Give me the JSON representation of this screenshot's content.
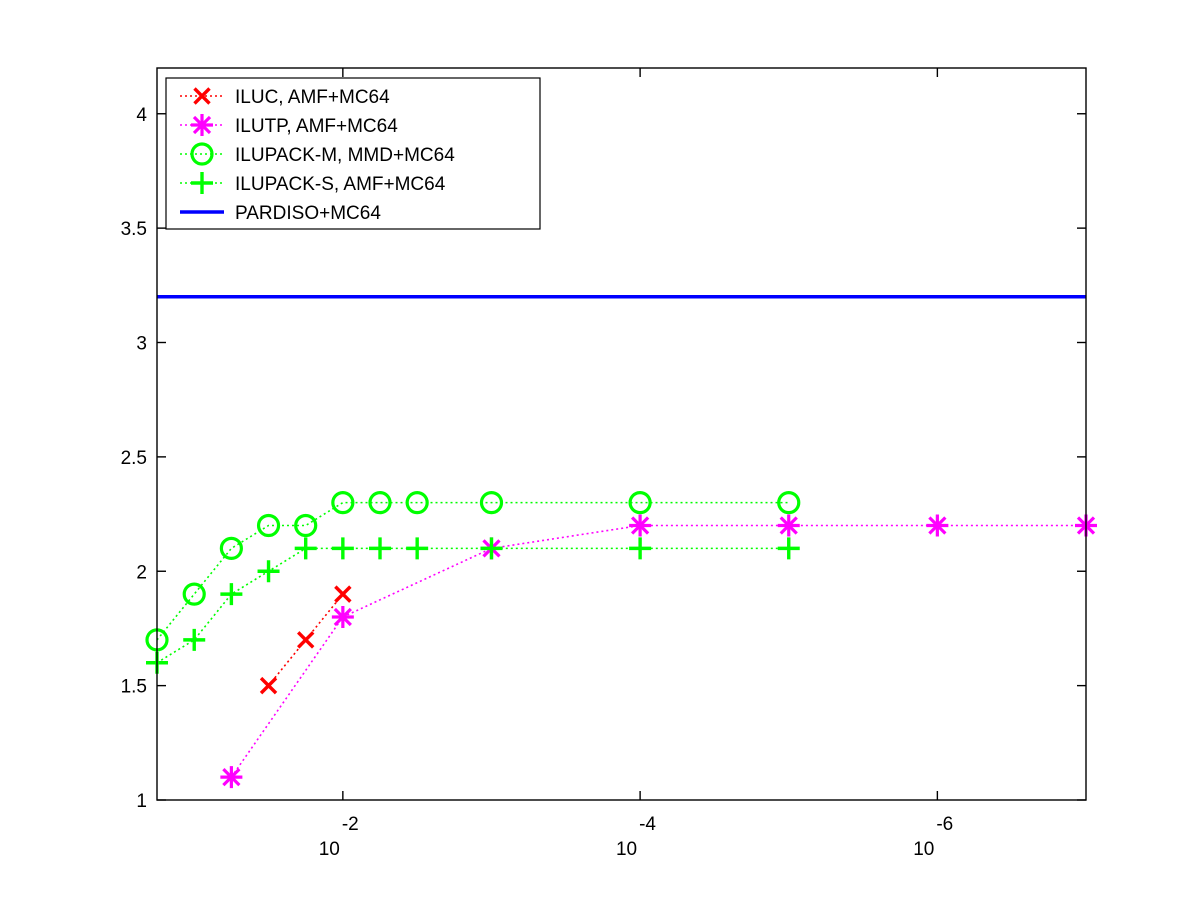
{
  "chart_data": {
    "type": "line",
    "title": "",
    "xlabel": "",
    "ylabel": "",
    "x_scale": "log",
    "x_direction": "decreasing",
    "xlim": [
      0.178,
      1e-07
    ],
    "ylim": [
      1,
      4.2
    ],
    "y_ticks": [
      {
        "value": 1,
        "label": "1"
      },
      {
        "value": 1.5,
        "label": "1.5"
      },
      {
        "value": 2,
        "label": "2"
      },
      {
        "value": 2.5,
        "label": "2.5"
      },
      {
        "value": 3,
        "label": "3"
      },
      {
        "value": 3.5,
        "label": "3.5"
      },
      {
        "value": 4,
        "label": "4"
      }
    ],
    "x_ticks": [
      {
        "value": 0.01,
        "base": "10",
        "exponent": "-2"
      },
      {
        "value": 0.0001,
        "base": "10",
        "exponent": "-4"
      },
      {
        "value": 1e-06,
        "base": "10",
        "exponent": "-6"
      }
    ],
    "grid": false,
    "legend_position": "top-left",
    "series": [
      {
        "name": "ILUC, AMF+MC64",
        "color": "#ff0000",
        "marker": "x",
        "line": "dotted",
        "x": [
          0.03162,
          0.01778,
          0.01
        ],
        "y": [
          1.5,
          1.7,
          1.9
        ]
      },
      {
        "name": "ILUTP, AMF+MC64",
        "color": "#ff00ff",
        "marker": "asterisk",
        "line": "dotted",
        "x": [
          0.05623,
          0.01,
          0.001,
          0.0001,
          1e-05,
          1e-06,
          1e-07
        ],
        "y": [
          1.1,
          1.8,
          2.1,
          2.2,
          2.2,
          2.2,
          2.2
        ]
      },
      {
        "name": "ILUPACK-M, MMD+MC64",
        "color": "#00ff00",
        "marker": "circle",
        "line": "dotted",
        "x": [
          0.178,
          0.1,
          0.05623,
          0.03162,
          0.01778,
          0.01,
          0.005623,
          0.003162,
          0.001,
          0.0001,
          1e-05
        ],
        "y": [
          1.7,
          1.9,
          2.1,
          2.2,
          2.2,
          2.3,
          2.3,
          2.3,
          2.3,
          2.3,
          2.3
        ]
      },
      {
        "name": "ILUPACK-S, AMF+MC64",
        "color": "#00ff00",
        "marker": "plus",
        "line": "dotted",
        "x": [
          0.178,
          0.1,
          0.05623,
          0.03162,
          0.01778,
          0.01,
          0.005623,
          0.003162,
          0.001,
          0.0001,
          1e-05
        ],
        "y": [
          1.6,
          1.7,
          1.9,
          2.0,
          2.1,
          2.1,
          2.1,
          2.1,
          2.1,
          2.1,
          2.1
        ]
      },
      {
        "name": "PARDISO+MC64",
        "color": "#0000ff",
        "marker": "none",
        "line": "solid",
        "x": [
          0.178,
          1e-07
        ],
        "y": [
          3.2,
          3.2
        ]
      }
    ]
  }
}
